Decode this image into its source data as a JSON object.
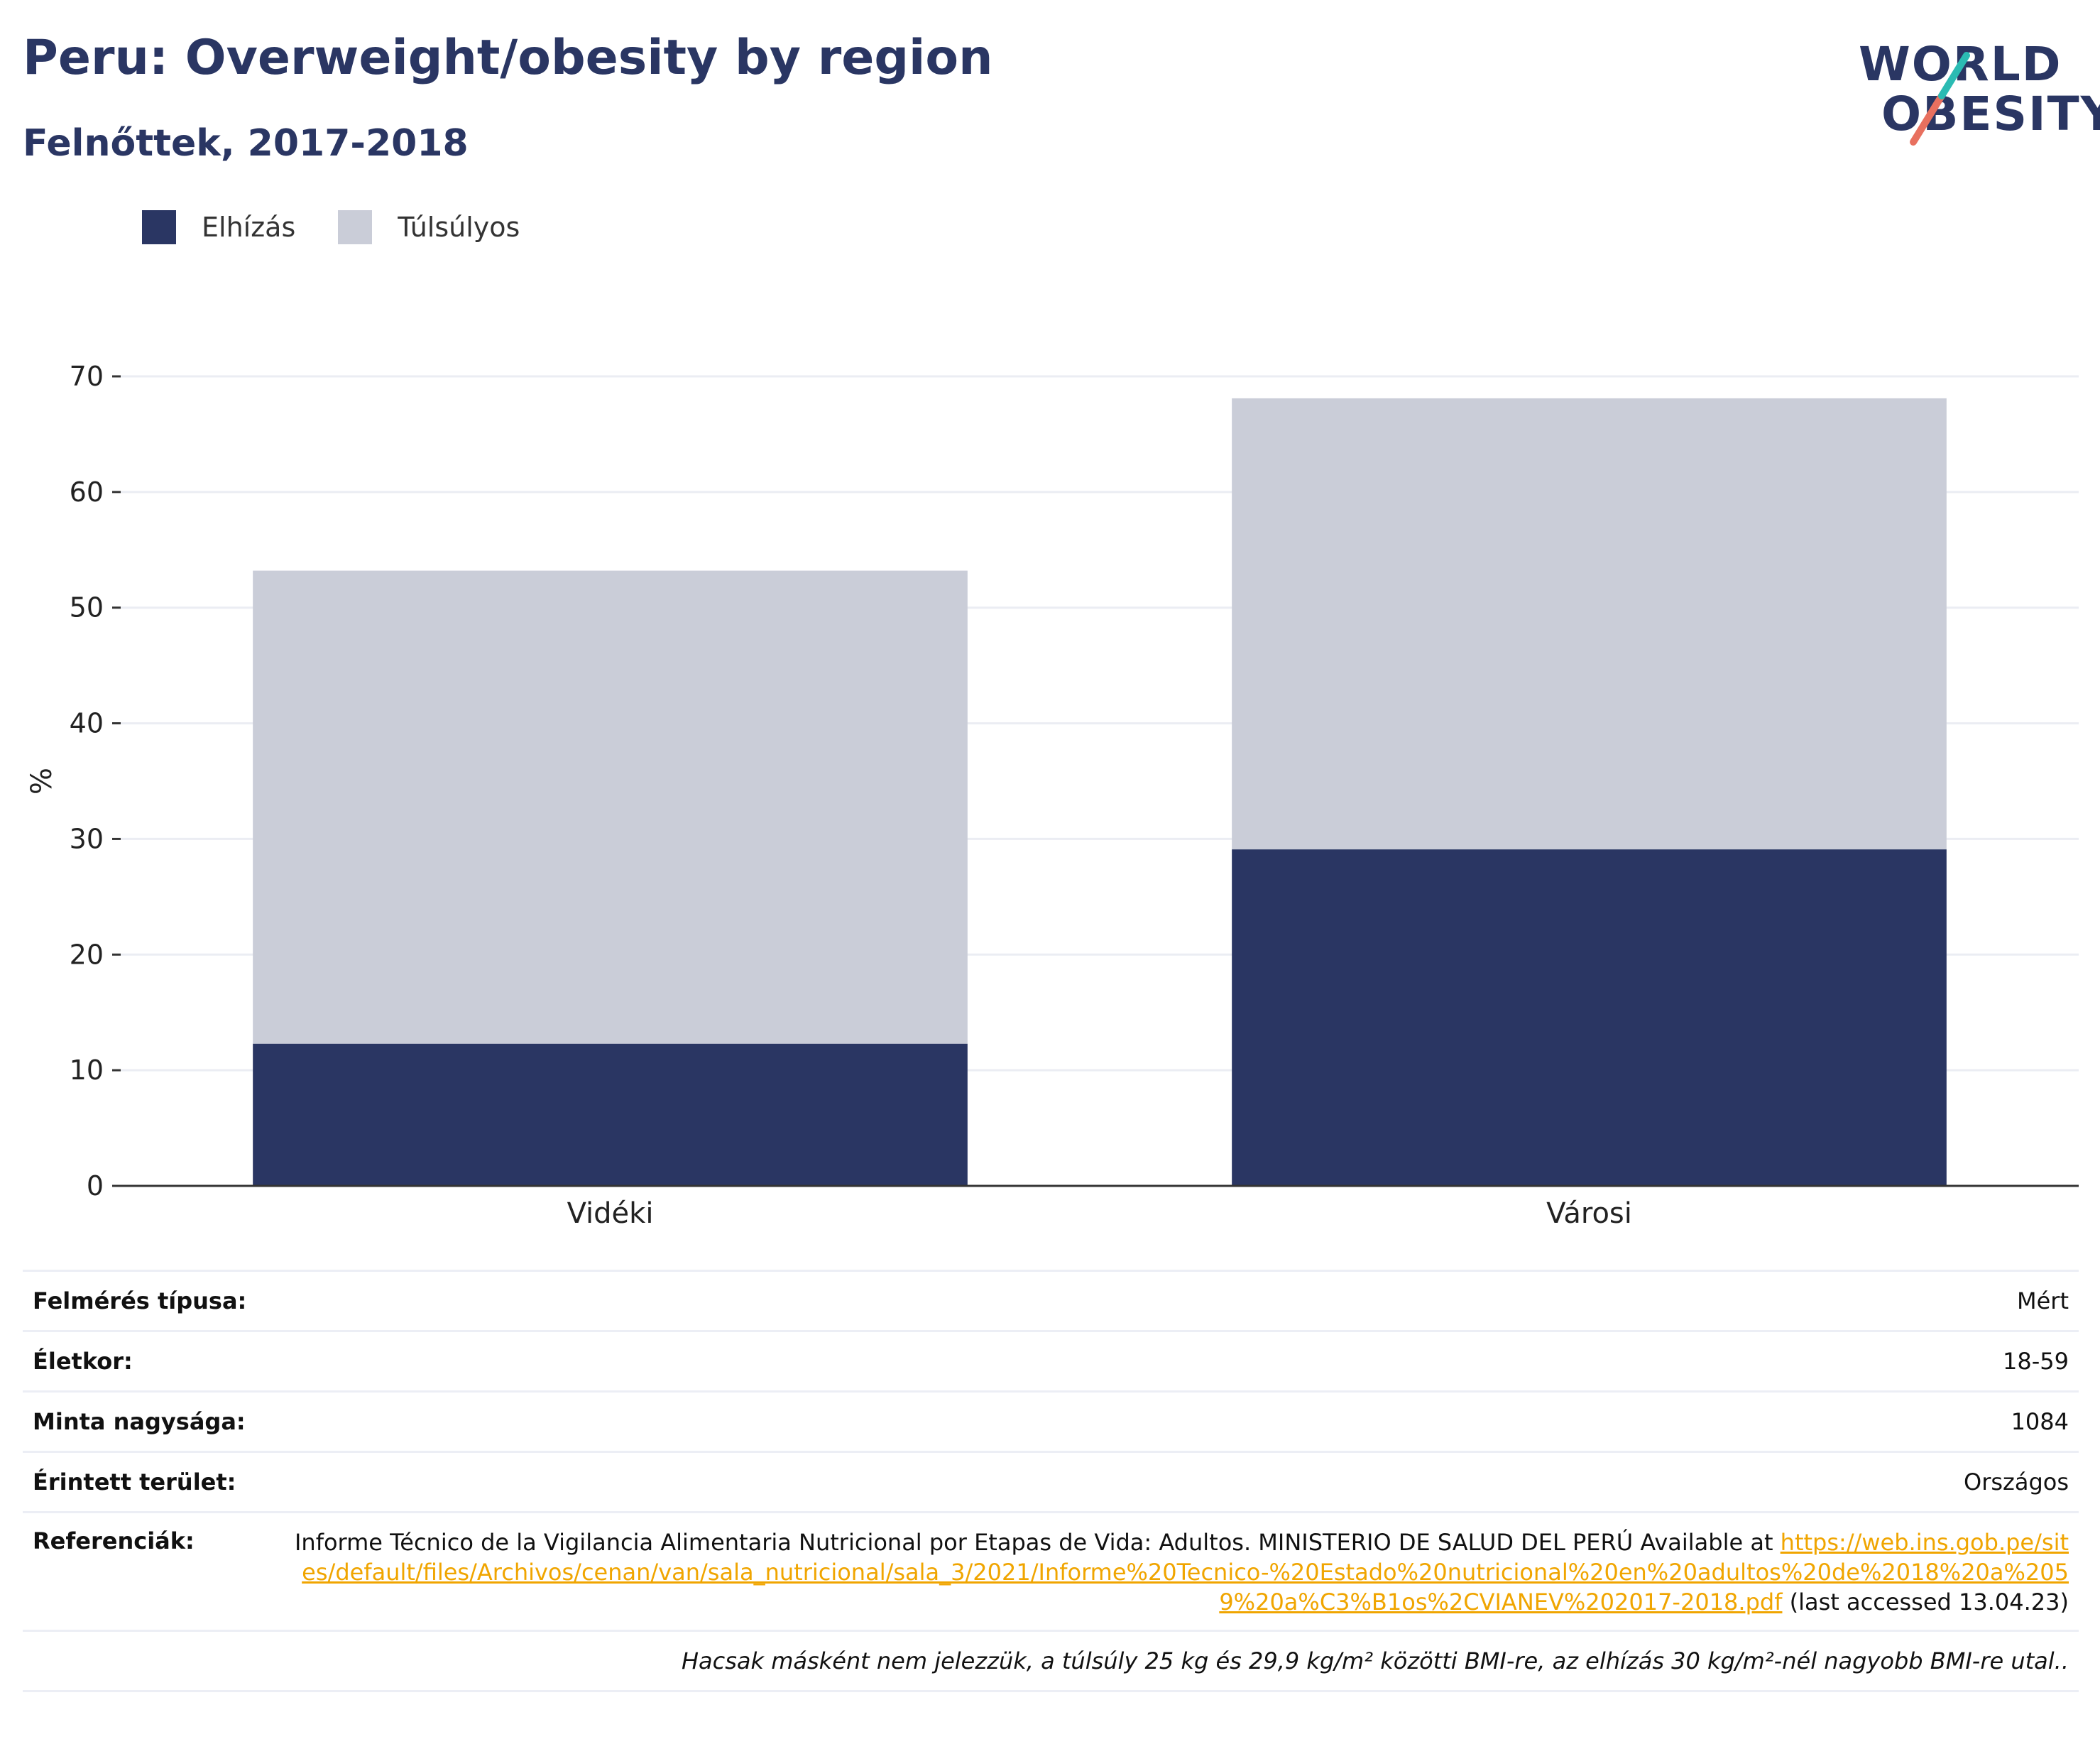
{
  "title": "Peru: Overweight/obesity by region",
  "subtitle": "Felnőttek, 2017-2018",
  "logo": {
    "line1": "WORLD",
    "line2": "OBESITY"
  },
  "colors": {
    "obesity": "#2a3663",
    "overweight": "#cacdd8",
    "title": "#2a3663",
    "link": "#f0a500",
    "logo_slash_teal": "#2bbbb3",
    "logo_slash_red": "#e8705f"
  },
  "chart_data": {
    "type": "bar",
    "stacked": true,
    "categories": [
      "Vidéki",
      "Városi"
    ],
    "series": [
      {
        "name": "Elhízás",
        "values": [
          12.3,
          29.1
        ]
      },
      {
        "name": "Túlsúlyos",
        "values": [
          40.9,
          39.0
        ]
      }
    ],
    "ylabel": "%",
    "xlabel": "",
    "ylim": [
      0,
      70
    ],
    "yticks": [
      "0",
      "10",
      "20",
      "30",
      "40",
      "50",
      "60",
      "70"
    ],
    "grid": true,
    "legend": "top-left"
  },
  "info": {
    "survey_type": {
      "label": "Felmérés típusa:",
      "value": "Mért"
    },
    "age": {
      "label": "Életkor:",
      "value": "18-59"
    },
    "sample": {
      "label": "Minta nagysága:",
      "value": "1084"
    },
    "area": {
      "label": "Érintett terület:",
      "value": "Országos"
    },
    "references": {
      "label": "Referenciák:",
      "text": "Informe Técnico de la Vigilancia Alimentaria Nutricional por Etapas de Vida: Adultos. MINISTERIO DE SALUD DEL PERÚ Available at",
      "url": "https://web.ins.gob.pe/sites/default/files/Archivos/cenan/van/sala_nutricional/sala_3/2021/Informe%20Tecnico-%20Estado%20nutricional%20en%20adultos%20de%2018%20a%2059%20a%C3%B1os%2CVIANEV%202017-2018.pdf",
      "suffix": "(last accessed 13.04.23)"
    },
    "note": "Hacsak másként nem jelezzük, a túlsúly 25 kg és 29,9 kg/m² közötti BMI-re, az elhízás 30 kg/m²-nél nagyobb BMI-re utal.."
  }
}
